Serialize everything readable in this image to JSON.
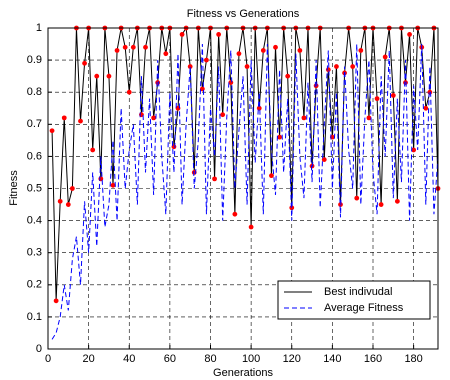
{
  "chart_data": {
    "type": "line",
    "title": "Fitness vs Generations",
    "x_label": "Generations",
    "y_label": "Fitness",
    "x": [
      2,
      4,
      6,
      8,
      10,
      12,
      14,
      16,
      18,
      20,
      22,
      24,
      26,
      28,
      30,
      32,
      34,
      36,
      38,
      40,
      42,
      44,
      46,
      48,
      50,
      52,
      54,
      56,
      58,
      60,
      62,
      64,
      66,
      68,
      70,
      72,
      74,
      76,
      78,
      80,
      82,
      84,
      86,
      88,
      90,
      92,
      94,
      96,
      98,
      100,
      102,
      104,
      106,
      108,
      110,
      112,
      114,
      116,
      118,
      120,
      122,
      124,
      126,
      128,
      130,
      132,
      134,
      136,
      138,
      140,
      142,
      144,
      146,
      148,
      150,
      152,
      154,
      156,
      158,
      160,
      162,
      164,
      166,
      168,
      170,
      172,
      174,
      176,
      178,
      180,
      182,
      184,
      186,
      188,
      190,
      192
    ],
    "series": [
      {
        "name": "Best indivudal",
        "color": "#000000",
        "marker_color": "#ff0000",
        "values": [
          0.68,
          0.15,
          0.46,
          0.72,
          0.45,
          0.5,
          1,
          0.71,
          0.89,
          1,
          0.62,
          0.85,
          0.53,
          1,
          0.85,
          0.51,
          0.93,
          1,
          0.94,
          0.8,
          0.94,
          1,
          0.73,
          0.94,
          1,
          0.72,
          0.83,
          1,
          0.92,
          1,
          0.63,
          0.75,
          0.98,
          1,
          0.88,
          0.55,
          1,
          0.81,
          0.9,
          1,
          0.53,
          0.98,
          0.73,
          1,
          0.83,
          0.42,
          0.92,
          1,
          0.88,
          0.38,
          1,
          0.75,
          0.93,
          1,
          0.54,
          0.94,
          0.66,
          1,
          0.85,
          0.44,
          1,
          0.93,
          0.72,
          1,
          0.57,
          0.82,
          1,
          0.59,
          0.87,
          0.66,
          0.88,
          0.45,
          0.86,
          1,
          0.88,
          0.47,
          0.93,
          1,
          0.72,
          1,
          0.78,
          0.45,
          0.91,
          1,
          0.79,
          0.46,
          1,
          0.83,
          0.98,
          0.62,
          1,
          0.94,
          0.75,
          0.8,
          1,
          0.5
        ]
      },
      {
        "name": "Average Fitness",
        "color": "#0000ff",
        "dashed": true,
        "values": [
          0.03,
          0.05,
          0.1,
          0.2,
          0.12,
          0.28,
          0.35,
          0.2,
          0.46,
          0.3,
          0.55,
          0.32,
          0.6,
          0.38,
          0.45,
          0.65,
          0.4,
          0.75,
          0.5,
          0.62,
          0.7,
          0.45,
          0.85,
          0.55,
          0.78,
          0.48,
          0.9,
          0.6,
          0.42,
          0.8,
          0.55,
          0.92,
          0.45,
          0.7,
          0.88,
          0.5,
          0.65,
          0.95,
          0.42,
          0.75,
          0.6,
          0.88,
          0.4,
          0.72,
          0.93,
          0.5,
          0.68,
          0.85,
          0.45,
          0.9,
          0.58,
          0.8,
          0.42,
          0.95,
          0.62,
          0.48,
          0.87,
          0.55,
          0.78,
          0.4,
          0.92,
          0.6,
          0.47,
          0.83,
          0.52,
          0.9,
          0.44,
          0.7,
          0.93,
          0.5,
          0.8,
          0.41,
          0.88,
          0.62,
          0.5,
          0.95,
          0.45,
          0.72,
          0.9,
          0.55,
          0.42,
          0.85,
          0.6,
          0.93,
          0.47,
          0.78,
          0.52,
          0.9,
          0.4,
          0.82,
          0.62,
          0.95,
          0.45,
          0.88,
          0.42,
          0.6
        ]
      }
    ],
    "xlim": [
      0,
      192
    ],
    "ylim": [
      0,
      1
    ],
    "xticks": [
      0,
      20,
      40,
      60,
      80,
      100,
      120,
      140,
      160,
      180
    ],
    "yticks": [
      0,
      0.1,
      0.2,
      0.3,
      0.4,
      0.5,
      0.6,
      0.7,
      0.8,
      0.9,
      1
    ],
    "grid": true,
    "legend": "lower right"
  }
}
